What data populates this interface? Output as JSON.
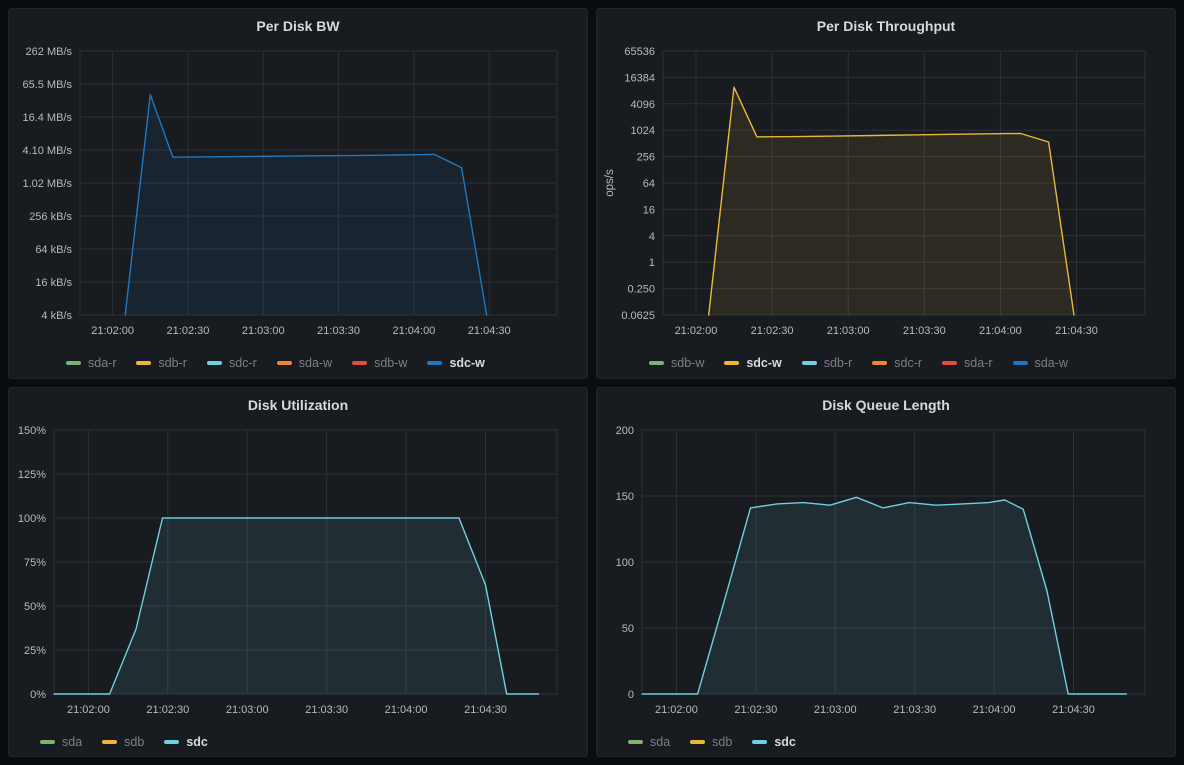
{
  "page": {
    "background": "#0b0c0e"
  },
  "colors": {
    "green": "#7EB26D",
    "yellow": "#EAB839",
    "cyan": "#6ED0E0",
    "orange": "#EF843C",
    "red": "#E24D42",
    "blue": "#1F78C1",
    "panel_bg": "#181b1f",
    "panel_border": "#22252b",
    "grid": "#2e3136",
    "tick_text": "#b6bac0",
    "title_text": "#d8d9da",
    "legend_dim": "#7b8087",
    "legend_highlight": "#d8d9da"
  },
  "time_axis_note": "x values are seconds relative to 21:02:00",
  "chart_data": [
    {
      "type": "area",
      "title": "Per Disk BW",
      "y_axis": {
        "scale": "log4",
        "label": "",
        "ticks": [
          {
            "label": "4 kB/s",
            "value": 0.004096
          },
          {
            "label": "16 kB/s",
            "value": 0.016384
          },
          {
            "label": "64 kB/s",
            "value": 0.065536
          },
          {
            "label": "256 kB/s",
            "value": 0.262144
          },
          {
            "label": "1.02 MB/s",
            "value": 1.048576
          },
          {
            "label": "4.10 MB/s",
            "value": 4.194304
          },
          {
            "label": "16.4 MB/s",
            "value": 16.777216
          },
          {
            "label": "65.5 MB/s",
            "value": 67.108864
          },
          {
            "label": "262 MB/s",
            "value": 268.435456
          }
        ]
      },
      "x_axis": {
        "domain": [
          -13,
          177
        ],
        "ticks": [
          {
            "t": 0,
            "label": "21:02:00"
          },
          {
            "t": 30,
            "label": "21:02:30"
          },
          {
            "t": 60,
            "label": "21:03:00"
          },
          {
            "t": 90,
            "label": "21:03:30"
          },
          {
            "t": 120,
            "label": "21:04:00"
          },
          {
            "t": 150,
            "label": "21:04:30"
          }
        ]
      },
      "legend": [
        {
          "label": "sda-r",
          "color": "green",
          "highlighted": false
        },
        {
          "label": "sdb-r",
          "color": "yellow",
          "highlighted": false
        },
        {
          "label": "sdc-r",
          "color": "cyan",
          "highlighted": false
        },
        {
          "label": "sda-w",
          "color": "orange",
          "highlighted": false
        },
        {
          "label": "sdb-w",
          "color": "red",
          "highlighted": false
        },
        {
          "label": "sdc-w",
          "color": "blue",
          "highlighted": true
        }
      ],
      "series": [
        {
          "name": "sdc-w",
          "color": "blue",
          "unit": "MB/s",
          "points": [
            [
              5,
              0.004096
            ],
            [
              15,
              43
            ],
            [
              24,
              3.1
            ],
            [
              40,
              3.15
            ],
            [
              55,
              3.2
            ],
            [
              70,
              3.25
            ],
            [
              85,
              3.3
            ],
            [
              100,
              3.35
            ],
            [
              112,
              3.4
            ],
            [
              122,
              3.45
            ],
            [
              128,
              3.5
            ],
            [
              139,
              2.0
            ],
            [
              149,
              0.004096
            ]
          ]
        }
      ]
    },
    {
      "type": "area",
      "title": "Per Disk Throughput",
      "y_axis": {
        "scale": "log4",
        "label": "ops/s",
        "ticks": [
          {
            "label": "0.0625",
            "value": 0.0625
          },
          {
            "label": "0.250",
            "value": 0.25
          },
          {
            "label": "1",
            "value": 1
          },
          {
            "label": "4",
            "value": 4
          },
          {
            "label": "16",
            "value": 16
          },
          {
            "label": "64",
            "value": 64
          },
          {
            "label": "256",
            "value": 256
          },
          {
            "label": "1024",
            "value": 1024
          },
          {
            "label": "4096",
            "value": 4096
          },
          {
            "label": "16384",
            "value": 16384
          },
          {
            "label": "65536",
            "value": 65536
          }
        ]
      },
      "x_axis": {
        "domain": [
          -13,
          177
        ],
        "ticks": [
          {
            "t": 0,
            "label": "21:02:00"
          },
          {
            "t": 30,
            "label": "21:02:30"
          },
          {
            "t": 60,
            "label": "21:03:00"
          },
          {
            "t": 90,
            "label": "21:03:30"
          },
          {
            "t": 120,
            "label": "21:04:00"
          },
          {
            "t": 150,
            "label": "21:04:30"
          }
        ]
      },
      "legend": [
        {
          "label": "sdb-w",
          "color": "green",
          "highlighted": false
        },
        {
          "label": "sdc-w",
          "color": "yellow",
          "highlighted": true
        },
        {
          "label": "sdb-r",
          "color": "cyan",
          "highlighted": false
        },
        {
          "label": "sdc-r",
          "color": "orange",
          "highlighted": false
        },
        {
          "label": "sda-r",
          "color": "red",
          "highlighted": false
        },
        {
          "label": "sda-w",
          "color": "blue",
          "highlighted": false
        }
      ],
      "series": [
        {
          "name": "sdc-w",
          "color": "yellow",
          "unit": "ops/s",
          "points": [
            [
              5,
              0.0625
            ],
            [
              15,
              9800
            ],
            [
              24,
              720
            ],
            [
              40,
              730
            ],
            [
              55,
              750
            ],
            [
              70,
              775
            ],
            [
              85,
              800
            ],
            [
              100,
              825
            ],
            [
              112,
              845
            ],
            [
              122,
              855
            ],
            [
              128,
              860
            ],
            [
              139,
              550
            ],
            [
              149,
              0.0625
            ]
          ]
        }
      ]
    },
    {
      "type": "area",
      "title": "Disk Utilization",
      "y_axis": {
        "scale": "linear",
        "label": "",
        "ticks": [
          {
            "label": "0%",
            "value": 0
          },
          {
            "label": "25%",
            "value": 25
          },
          {
            "label": "50%",
            "value": 50
          },
          {
            "label": "75%",
            "value": 75
          },
          {
            "label": "100%",
            "value": 100
          },
          {
            "label": "125%",
            "value": 125
          },
          {
            "label": "150%",
            "value": 150
          }
        ]
      },
      "x_axis": {
        "domain": [
          -13,
          177
        ],
        "ticks": [
          {
            "t": 0,
            "label": "21:02:00"
          },
          {
            "t": 30,
            "label": "21:02:30"
          },
          {
            "t": 60,
            "label": "21:03:00"
          },
          {
            "t": 90,
            "label": "21:03:30"
          },
          {
            "t": 120,
            "label": "21:04:00"
          },
          {
            "t": 150,
            "label": "21:04:30"
          }
        ]
      },
      "legend": [
        {
          "label": "sda",
          "color": "green",
          "highlighted": false
        },
        {
          "label": "sdb",
          "color": "yellow",
          "highlighted": false
        },
        {
          "label": "sdc",
          "color": "cyan",
          "highlighted": true
        }
      ],
      "series": [
        {
          "name": "sdc",
          "color": "cyan",
          "unit": "%",
          "points": [
            [
              -13,
              0
            ],
            [
              8,
              0
            ],
            [
              18,
              37
            ],
            [
              28,
              100
            ],
            [
              140,
              100
            ],
            [
              150,
              62
            ],
            [
              158,
              0
            ],
            [
              170,
              0
            ]
          ]
        }
      ]
    },
    {
      "type": "area",
      "title": "Disk Queue Length",
      "y_axis": {
        "scale": "linear",
        "label": "",
        "ticks": [
          {
            "label": "0",
            "value": 0
          },
          {
            "label": "50",
            "value": 50
          },
          {
            "label": "100",
            "value": 100
          },
          {
            "label": "150",
            "value": 150
          },
          {
            "label": "200",
            "value": 200
          }
        ]
      },
      "x_axis": {
        "domain": [
          -13,
          177
        ],
        "ticks": [
          {
            "t": 0,
            "label": "21:02:00"
          },
          {
            "t": 30,
            "label": "21:02:30"
          },
          {
            "t": 60,
            "label": "21:03:00"
          },
          {
            "t": 90,
            "label": "21:03:30"
          },
          {
            "t": 120,
            "label": "21:04:00"
          },
          {
            "t": 150,
            "label": "21:04:30"
          }
        ]
      },
      "legend": [
        {
          "label": "sda",
          "color": "green",
          "highlighted": false
        },
        {
          "label": "sdb",
          "color": "yellow",
          "highlighted": false
        },
        {
          "label": "sdc",
          "color": "cyan",
          "highlighted": true
        }
      ],
      "series": [
        {
          "name": "sdc",
          "color": "cyan",
          "unit": "",
          "points": [
            [
              -13,
              0
            ],
            [
              8,
              0
            ],
            [
              18,
              70
            ],
            [
              28,
              141
            ],
            [
              38,
              144
            ],
            [
              48,
              145
            ],
            [
              58,
              143
            ],
            [
              68,
              149
            ],
            [
              78,
              141
            ],
            [
              88,
              145
            ],
            [
              98,
              143
            ],
            [
              108,
              144
            ],
            [
              118,
              145
            ],
            [
              124,
              147
            ],
            [
              131,
              140
            ],
            [
              140,
              78
            ],
            [
              148,
              0
            ],
            [
              170,
              0
            ]
          ]
        }
      ]
    }
  ]
}
